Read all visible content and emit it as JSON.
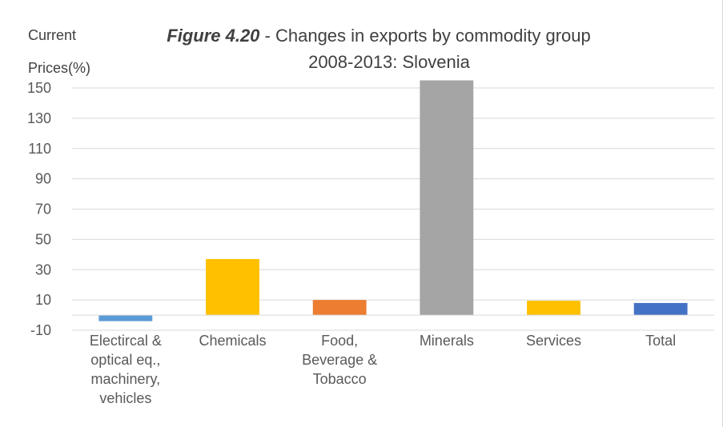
{
  "chart_data": {
    "type": "bar",
    "title_prefix": "Figure 4.20",
    "title_rest": " - Changes in exports by commodity group",
    "title_line2": "2008-2013: Slovenia",
    "ylabel_line1": "Current",
    "ylabel_line2": "Prices(%)",
    "xlabel": "",
    "ylim": [
      -10,
      155
    ],
    "yticks": [
      150,
      130,
      110,
      90,
      70,
      50,
      30,
      10,
      -10
    ],
    "grid": true,
    "categories": [
      [
        "Electircal &",
        "optical eq.,",
        "machinery,",
        "vehicles"
      ],
      [
        "Chemicals"
      ],
      [
        "Food,",
        "Beverage &",
        "Tobacco"
      ],
      [
        "Minerals"
      ],
      [
        "Services"
      ],
      [
        "Total"
      ]
    ],
    "values": [
      -4,
      37,
      10,
      156,
      9.5,
      8
    ],
    "colors": [
      "#5b9bd5",
      "#ffc000",
      "#ed7d31",
      "#a5a5a5",
      "#ffc000",
      "#4472c4"
    ]
  }
}
